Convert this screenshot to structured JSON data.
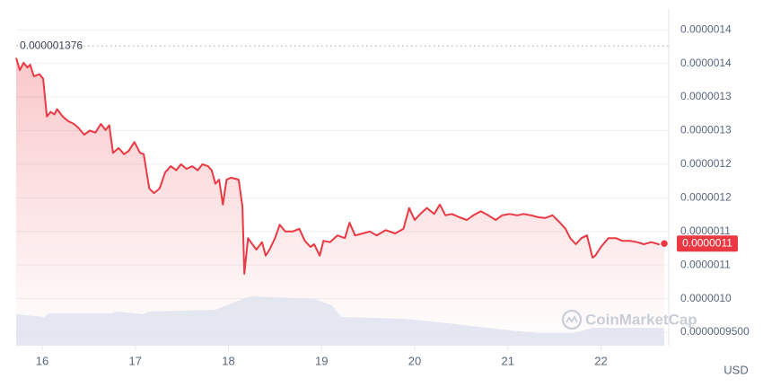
{
  "chart_data": {
    "type": "line",
    "xlim": [
      15.72,
      22.68
    ],
    "xticks": [
      16,
      17,
      18,
      19,
      20,
      21,
      22
    ],
    "ylim": [
      9.3e-07,
      1.431e-06
    ],
    "yticks": [
      {
        "value": 9.5e-07,
        "label": "0.0000009500"
      },
      {
        "value": 1e-06,
        "label": "0.0000010"
      },
      {
        "value": 1.05e-06,
        "label": "0.0000011"
      },
      {
        "value": 1.1e-06,
        "label": "0.0000011"
      },
      {
        "value": 1.15e-06,
        "label": "0.0000012"
      },
      {
        "value": 1.2e-06,
        "label": "0.0000012"
      },
      {
        "value": 1.25e-06,
        "label": "0.0000013"
      },
      {
        "value": 1.3e-06,
        "label": "0.0000013"
      },
      {
        "value": 1.35e-06,
        "label": "0.0000014"
      },
      {
        "value": 1.4e-06,
        "label": "0.0000014"
      }
    ],
    "grid": true,
    "x": [
      15.72,
      15.76,
      15.8,
      15.84,
      15.87,
      15.91,
      15.97,
      16.01,
      16.05,
      16.09,
      16.13,
      16.16,
      16.22,
      16.28,
      16.34,
      16.39,
      16.45,
      16.51,
      16.57,
      16.63,
      16.68,
      16.72,
      16.76,
      16.82,
      16.88,
      16.93,
      16.99,
      17.05,
      17.09,
      17.15,
      17.2,
      17.26,
      17.32,
      17.38,
      17.44,
      17.49,
      17.55,
      17.61,
      17.67,
      17.72,
      17.78,
      17.82,
      17.86,
      17.9,
      17.94,
      17.98,
      18.03,
      18.11,
      18.15,
      18.17,
      18.21,
      18.24,
      18.3,
      18.36,
      18.4,
      18.44,
      18.5,
      18.55,
      18.61,
      18.69,
      18.76,
      18.82,
      18.88,
      18.92,
      18.98,
      19.02,
      19.09,
      19.17,
      19.25,
      19.3,
      19.36,
      19.44,
      19.52,
      19.59,
      19.69,
      19.79,
      19.88,
      19.94,
      20.0,
      20.06,
      20.13,
      20.21,
      20.27,
      20.33,
      20.4,
      20.48,
      20.56,
      20.63,
      20.71,
      20.79,
      20.87,
      20.94,
      21.02,
      21.1,
      21.17,
      21.25,
      21.33,
      21.4,
      21.48,
      21.56,
      21.62,
      21.67,
      21.73,
      21.79,
      21.85,
      21.91,
      21.94,
      22.0,
      22.08,
      22.16,
      22.23,
      22.31,
      22.39,
      22.46,
      22.54,
      22.62,
      22.68
    ],
    "series": [
      {
        "color": "#ea3943",
        "values": [
          1.358e-06,
          1.34e-06,
          1.351e-06,
          1.344e-06,
          1.348e-06,
          1.331e-06,
          1.334e-06,
          1.327e-06,
          1.271e-06,
          1.278e-06,
          1.274e-06,
          1.282e-06,
          1.271e-06,
          1.264e-06,
          1.26e-06,
          1.254e-06,
          1.244e-06,
          1.25e-06,
          1.247e-06,
          1.26e-06,
          1.251e-06,
          1.258e-06,
          1.217e-06,
          1.224e-06,
          1.215e-06,
          1.22e-06,
          1.233e-06,
          1.217e-06,
          1.215e-06,
          1.164e-06,
          1.157e-06,
          1.164e-06,
          1.188e-06,
          1.197e-06,
          1.191e-06,
          1.2e-06,
          1.193e-06,
          1.197e-06,
          1.191e-06,
          1.2e-06,
          1.197e-06,
          1.191e-06,
          1.171e-06,
          1.177e-06,
          1.14e-06,
          1.177e-06,
          1.18e-06,
          1.177e-06,
          1.137e-06,
          1.037e-06,
          1.09e-06,
          1.084e-06,
          1.073e-06,
          1.084e-06,
          1.064e-06,
          1.073e-06,
          1.09e-06,
          1.11e-06,
          1.1e-06,
          1.1e-06,
          1.104e-06,
          1.086e-06,
          1.077e-06,
          1.081e-06,
          1.064e-06,
          1.086e-06,
          1.084e-06,
          1.094e-06,
          1.09e-06,
          1.113e-06,
          1.094e-06,
          1.097e-06,
          1.1e-06,
          1.094e-06,
          1.102e-06,
          1.097e-06,
          1.104e-06,
          1.135e-06,
          1.117e-06,
          1.126e-06,
          1.135e-06,
          1.126e-06,
          1.14e-06,
          1.124e-06,
          1.126e-06,
          1.121e-06,
          1.117e-06,
          1.124e-06,
          1.13e-06,
          1.124e-06,
          1.117e-06,
          1.124e-06,
          1.126e-06,
          1.124e-06,
          1.126e-06,
          1.124e-06,
          1.121e-06,
          1.12e-06,
          1.124e-06,
          1.113e-06,
          1.104e-06,
          1.09e-06,
          1.081e-06,
          1.09e-06,
          1.094e-06,
          1.061e-06,
          1.064e-06,
          1.077e-06,
          1.09e-06,
          1.09e-06,
          1.086e-06,
          1.086e-06,
          1.084e-06,
          1.081e-06,
          1.084e-06,
          1.081e-06,
          1.082e-06
        ]
      }
    ],
    "reference_line": {
      "value": 1.376e-06,
      "label": "0.000001376"
    },
    "last_price": {
      "value": 1.082e-06,
      "label": "0.0000011"
    },
    "volume": {
      "x": [
        15.72,
        16.02,
        16.07,
        16.75,
        16.8,
        17.09,
        17.14,
        17.86,
        17.96,
        18.15,
        18.25,
        18.92,
        19.11,
        19.21,
        19.88,
        20.36,
        20.94,
        21.33,
        21.71,
        21.91,
        22.68
      ],
      "values": [
        35,
        32,
        36,
        36,
        38,
        35,
        38,
        40,
        44,
        52,
        55,
        52,
        45,
        32,
        30,
        25,
        18,
        14,
        14,
        20,
        20
      ]
    },
    "watermark": "CoinMarketCap",
    "currency": "USD"
  }
}
